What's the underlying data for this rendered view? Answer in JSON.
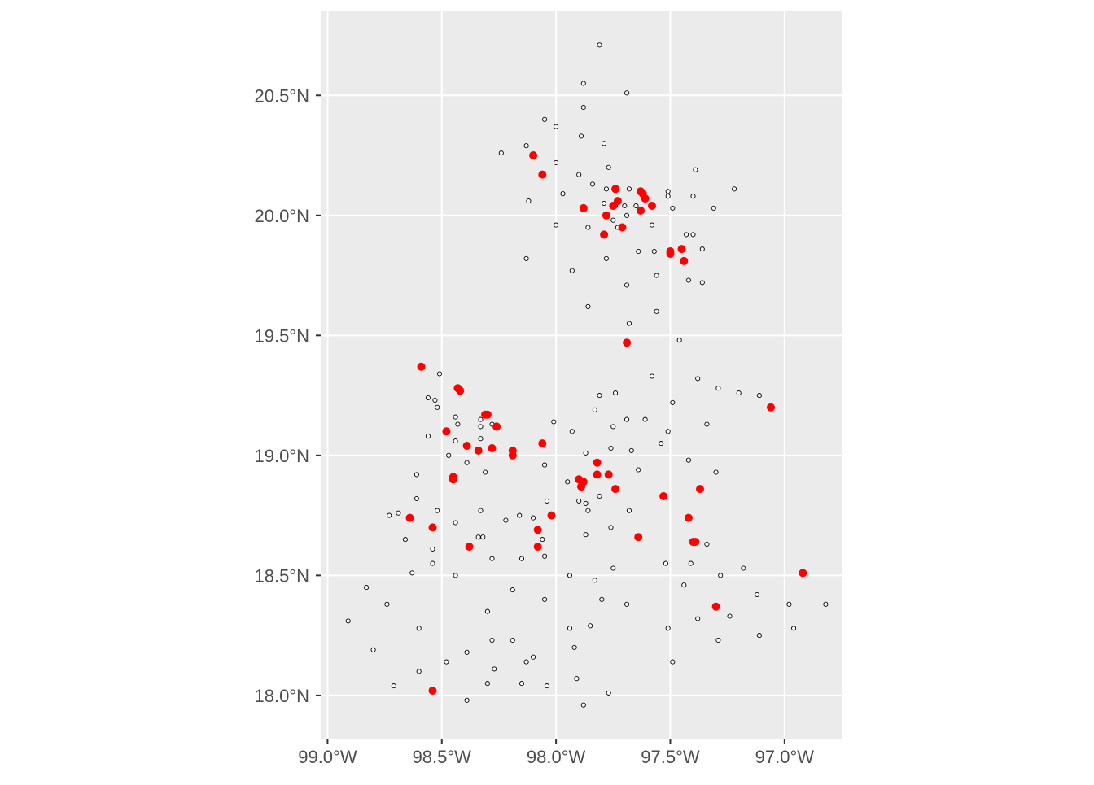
{
  "chart_data": {
    "type": "scatter",
    "title": "",
    "xlabel": "",
    "ylabel": "",
    "xlim": [
      -99.03,
      -96.75
    ],
    "ylim": [
      17.82,
      20.85
    ],
    "grid": true,
    "legend": "none",
    "x_ticks": [
      {
        "value": -99.0,
        "label": "99.0°W"
      },
      {
        "value": -98.5,
        "label": "98.5°W"
      },
      {
        "value": -98.0,
        "label": "98.0°W"
      },
      {
        "value": -97.5,
        "label": "97.5°W"
      },
      {
        "value": -97.0,
        "label": "97.0°W"
      }
    ],
    "y_ticks": [
      {
        "value": 18.0,
        "label": "18.0°N"
      },
      {
        "value": 18.5,
        "label": "18.5°N"
      },
      {
        "value": 19.0,
        "label": "19.0°N"
      },
      {
        "value": 19.5,
        "label": "19.5°N"
      },
      {
        "value": 20.0,
        "label": "20.0°N"
      },
      {
        "value": 20.5,
        "label": "20.5°N"
      }
    ],
    "colors": {
      "panel_bg": "#ebebeb",
      "grid": "#ffffff",
      "axis_text": "#4d4d4d",
      "tick": "#333333",
      "highlight_fill": "#ff0000",
      "open_fill": "#ffffff",
      "point_stroke": "#000000"
    },
    "series": [
      {
        "marker": "open",
        "points": [
          [
            -97.81,
            20.71
          ],
          [
            -97.88,
            20.55
          ],
          [
            -97.69,
            20.51
          ],
          [
            -97.88,
            20.45
          ],
          [
            -98.05,
            20.4
          ],
          [
            -98.0,
            20.37
          ],
          [
            -97.89,
            20.33
          ],
          [
            -98.13,
            20.29
          ],
          [
            -97.79,
            20.3
          ],
          [
            -98.24,
            20.26
          ],
          [
            -98.0,
            20.22
          ],
          [
            -97.77,
            20.2
          ],
          [
            -97.39,
            20.19
          ],
          [
            -97.9,
            20.17
          ],
          [
            -97.84,
            20.13
          ],
          [
            -97.78,
            20.11
          ],
          [
            -97.68,
            20.11
          ],
          [
            -97.51,
            20.1
          ],
          [
            -97.22,
            20.11
          ],
          [
            -97.97,
            20.09
          ],
          [
            -97.51,
            20.08
          ],
          [
            -97.4,
            20.08
          ],
          [
            -98.12,
            20.06
          ],
          [
            -97.79,
            20.05
          ],
          [
            -97.74,
            20.04
          ],
          [
            -97.7,
            20.04
          ],
          [
            -97.65,
            20.04
          ],
          [
            -97.49,
            20.03
          ],
          [
            -97.31,
            20.03
          ],
          [
            -97.69,
            20.0
          ],
          [
            -97.75,
            19.98
          ],
          [
            -98.0,
            19.96
          ],
          [
            -97.58,
            19.96
          ],
          [
            -97.86,
            19.95
          ],
          [
            -97.73,
            19.95
          ],
          [
            -97.43,
            19.92
          ],
          [
            -97.4,
            19.92
          ],
          [
            -97.64,
            19.85
          ],
          [
            -97.57,
            19.85
          ],
          [
            -97.36,
            19.86
          ],
          [
            -98.13,
            19.82
          ],
          [
            -97.78,
            19.82
          ],
          [
            -97.93,
            19.77
          ],
          [
            -97.56,
            19.75
          ],
          [
            -97.42,
            19.73
          ],
          [
            -97.36,
            19.72
          ],
          [
            -97.69,
            19.71
          ],
          [
            -97.86,
            19.62
          ],
          [
            -97.56,
            19.6
          ],
          [
            -97.68,
            19.55
          ],
          [
            -97.46,
            19.48
          ],
          [
            -98.51,
            19.34
          ],
          [
            -97.58,
            19.33
          ],
          [
            -97.38,
            19.32
          ],
          [
            -97.29,
            19.28
          ],
          [
            -97.2,
            19.26
          ],
          [
            -97.11,
            19.25
          ],
          [
            -97.74,
            19.26
          ],
          [
            -97.81,
            19.25
          ],
          [
            -98.56,
            19.24
          ],
          [
            -98.53,
            19.23
          ],
          [
            -97.49,
            19.22
          ],
          [
            -98.52,
            19.2
          ],
          [
            -97.83,
            19.19
          ],
          [
            -98.44,
            19.16
          ],
          [
            -98.33,
            19.15
          ],
          [
            -97.61,
            19.15
          ],
          [
            -97.69,
            19.15
          ],
          [
            -98.43,
            19.13
          ],
          [
            -98.28,
            19.13
          ],
          [
            -97.34,
            19.13
          ],
          [
            -98.01,
            19.14
          ],
          [
            -98.33,
            19.12
          ],
          [
            -97.75,
            19.12
          ],
          [
            -97.93,
            19.1
          ],
          [
            -97.51,
            19.1
          ],
          [
            -98.56,
            19.08
          ],
          [
            -98.33,
            19.07
          ],
          [
            -98.44,
            19.06
          ],
          [
            -97.54,
            19.05
          ],
          [
            -97.76,
            19.03
          ],
          [
            -97.67,
            19.02
          ],
          [
            -97.87,
            19.01
          ],
          [
            -98.47,
            19.0
          ],
          [
            -98.39,
            18.97
          ],
          [
            -97.42,
            18.98
          ],
          [
            -98.05,
            18.96
          ],
          [
            -97.64,
            18.94
          ],
          [
            -98.31,
            18.93
          ],
          [
            -97.3,
            18.93
          ],
          [
            -98.61,
            18.92
          ],
          [
            -97.95,
            18.89
          ],
          [
            -98.61,
            18.82
          ],
          [
            -98.04,
            18.81
          ],
          [
            -97.81,
            18.83
          ],
          [
            -97.9,
            18.81
          ],
          [
            -97.87,
            18.8
          ],
          [
            -98.52,
            18.77
          ],
          [
            -98.33,
            18.77
          ],
          [
            -97.86,
            18.77
          ],
          [
            -97.68,
            18.77
          ],
          [
            -98.16,
            18.75
          ],
          [
            -98.69,
            18.76
          ],
          [
            -98.73,
            18.75
          ],
          [
            -98.1,
            18.74
          ],
          [
            -98.22,
            18.73
          ],
          [
            -98.44,
            18.72
          ],
          [
            -97.76,
            18.7
          ],
          [
            -97.87,
            18.67
          ],
          [
            -98.34,
            18.66
          ],
          [
            -98.32,
            18.66
          ],
          [
            -98.06,
            18.65
          ],
          [
            -98.66,
            18.65
          ],
          [
            -97.34,
            18.63
          ],
          [
            -98.54,
            18.61
          ],
          [
            -98.05,
            18.58
          ],
          [
            -98.28,
            18.57
          ],
          [
            -98.15,
            18.57
          ],
          [
            -97.52,
            18.55
          ],
          [
            -98.54,
            18.55
          ],
          [
            -97.41,
            18.55
          ],
          [
            -97.75,
            18.53
          ],
          [
            -97.18,
            18.53
          ],
          [
            -98.63,
            18.51
          ],
          [
            -98.44,
            18.5
          ],
          [
            -97.94,
            18.5
          ],
          [
            -97.28,
            18.5
          ],
          [
            -97.83,
            18.48
          ],
          [
            -97.44,
            18.46
          ],
          [
            -98.83,
            18.45
          ],
          [
            -98.19,
            18.44
          ],
          [
            -97.12,
            18.42
          ],
          [
            -98.05,
            18.4
          ],
          [
            -97.8,
            18.4
          ],
          [
            -98.74,
            18.38
          ],
          [
            -97.69,
            18.38
          ],
          [
            -96.98,
            18.38
          ],
          [
            -96.82,
            18.38
          ],
          [
            -98.3,
            18.35
          ],
          [
            -97.24,
            18.33
          ],
          [
            -97.38,
            18.32
          ],
          [
            -98.91,
            18.31
          ],
          [
            -97.85,
            18.29
          ],
          [
            -98.6,
            18.28
          ],
          [
            -97.94,
            18.28
          ],
          [
            -97.51,
            18.28
          ],
          [
            -96.96,
            18.28
          ],
          [
            -97.11,
            18.25
          ],
          [
            -98.28,
            18.23
          ],
          [
            -98.19,
            18.23
          ],
          [
            -97.29,
            18.23
          ],
          [
            -97.92,
            18.2
          ],
          [
            -98.8,
            18.19
          ],
          [
            -98.39,
            18.18
          ],
          [
            -98.1,
            18.16
          ],
          [
            -98.13,
            18.14
          ],
          [
            -98.48,
            18.14
          ],
          [
            -97.49,
            18.14
          ],
          [
            -98.27,
            18.11
          ],
          [
            -98.6,
            18.1
          ],
          [
            -97.91,
            18.07
          ],
          [
            -98.3,
            18.05
          ],
          [
            -98.15,
            18.05
          ],
          [
            -98.04,
            18.04
          ],
          [
            -98.71,
            18.04
          ],
          [
            -97.77,
            18.01
          ],
          [
            -98.39,
            17.98
          ],
          [
            -97.88,
            17.96
          ]
        ]
      },
      {
        "marker": "filled",
        "points": [
          [
            -98.1,
            20.25
          ],
          [
            -98.06,
            20.17
          ],
          [
            -97.74,
            20.11
          ],
          [
            -97.63,
            20.1
          ],
          [
            -97.62,
            20.09
          ],
          [
            -97.61,
            20.07
          ],
          [
            -97.73,
            20.06
          ],
          [
            -97.75,
            20.04
          ],
          [
            -97.58,
            20.04
          ],
          [
            -97.88,
            20.03
          ],
          [
            -97.63,
            20.02
          ],
          [
            -97.78,
            20.0
          ],
          [
            -97.71,
            19.95
          ],
          [
            -97.79,
            19.92
          ],
          [
            -97.5,
            19.85
          ],
          [
            -97.5,
            19.84
          ],
          [
            -97.45,
            19.86
          ],
          [
            -97.44,
            19.81
          ],
          [
            -97.69,
            19.47
          ],
          [
            -98.59,
            19.37
          ],
          [
            -98.43,
            19.28
          ],
          [
            -98.42,
            19.27
          ],
          [
            -98.31,
            19.17
          ],
          [
            -98.3,
            19.17
          ],
          [
            -97.06,
            19.2
          ],
          [
            -98.26,
            19.12
          ],
          [
            -98.48,
            19.1
          ],
          [
            -98.06,
            19.05
          ],
          [
            -98.39,
            19.04
          ],
          [
            -98.28,
            19.03
          ],
          [
            -98.34,
            19.02
          ],
          [
            -98.19,
            19.02
          ],
          [
            -98.19,
            19.0
          ],
          [
            -97.82,
            18.97
          ],
          [
            -97.77,
            18.92
          ],
          [
            -97.82,
            18.92
          ],
          [
            -97.88,
            18.89
          ],
          [
            -97.9,
            18.9
          ],
          [
            -98.45,
            18.91
          ],
          [
            -98.45,
            18.9
          ],
          [
            -97.89,
            18.87
          ],
          [
            -97.74,
            18.86
          ],
          [
            -97.37,
            18.86
          ],
          [
            -97.53,
            18.83
          ],
          [
            -98.02,
            18.75
          ],
          [
            -98.64,
            18.74
          ],
          [
            -97.42,
            18.74
          ],
          [
            -98.54,
            18.7
          ],
          [
            -98.08,
            18.69
          ],
          [
            -97.64,
            18.66
          ],
          [
            -97.4,
            18.64
          ],
          [
            -97.39,
            18.64
          ],
          [
            -98.08,
            18.62
          ],
          [
            -98.38,
            18.62
          ],
          [
            -96.92,
            18.51
          ],
          [
            -97.3,
            18.37
          ],
          [
            -98.54,
            18.02
          ]
        ]
      }
    ]
  }
}
